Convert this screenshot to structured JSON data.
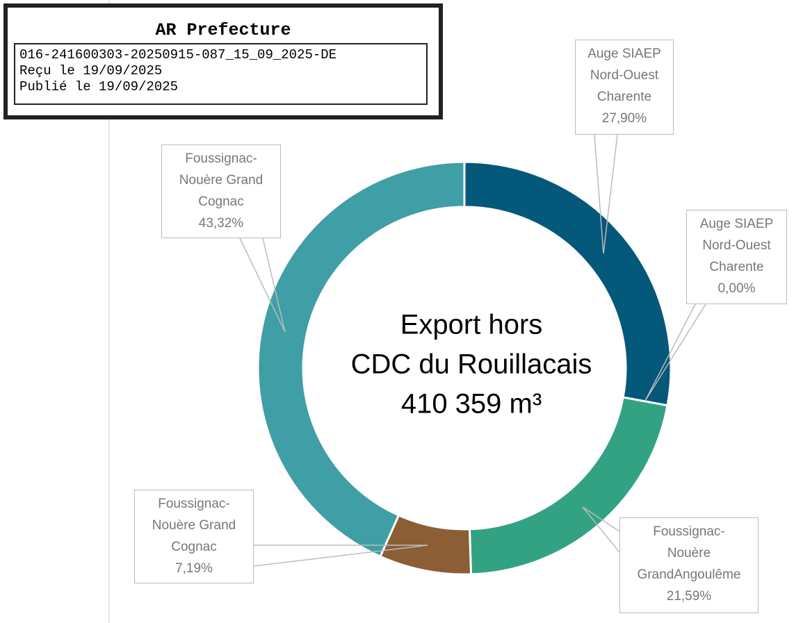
{
  "stamp": {
    "title": "AR Prefecture",
    "lines": [
      "016-241600303-20250915-087_15_09_2025-DE",
      "Reçu le 19/09/2025",
      "Publié le 19/09/2025"
    ]
  },
  "chart_data": {
    "type": "donut",
    "center_text": [
      "Export hors",
      "CDC du Rouillacais",
      "410 359 m³"
    ],
    "categories": [
      "Auge SIAEP Nord-Ouest Charente",
      "Auge SIAEP Nord-Ouest Charente",
      "Foussignac-Nouère GrandAngoulême",
      "Foussignac-Nouère Grand Cognac",
      "Foussignac-Nouère Grand Cognac"
    ],
    "values": [
      27.9,
      0.0,
      21.59,
      7.19,
      43.32
    ],
    "value_labels": [
      "27,90%",
      "0,00%",
      "21,59%",
      "7,19%",
      "43,32%"
    ],
    "colors": [
      "#04587a",
      "#04587a",
      "#33a283",
      "#8b5e36",
      "#409ea6"
    ]
  }
}
